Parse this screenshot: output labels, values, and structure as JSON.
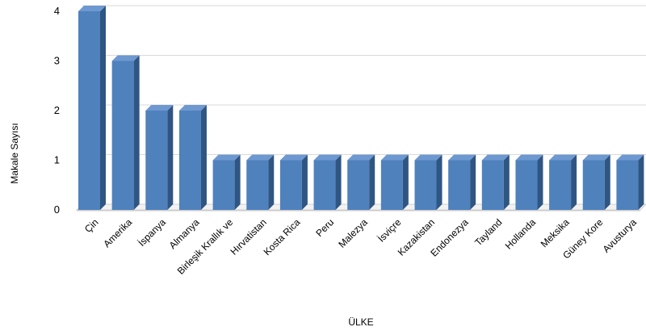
{
  "chart_data": {
    "type": "bar",
    "title": "",
    "xlabel": "ÜLKE",
    "ylabel": "Makale Sayısı",
    "ylim": [
      0,
      4
    ],
    "yticks": [
      0,
      1,
      2,
      3,
      4
    ],
    "grid": true,
    "style": "3d",
    "bar_color": "#4F81BD",
    "categories": [
      "Çin",
      "Amerika",
      "İspanya",
      "Almanya",
      "Birleşik Krallık ve",
      "Hırvatistan",
      "Kosta Rica",
      "Peru",
      "Malezya",
      "İsviçre",
      "Kazakistan",
      "Endonezya",
      "Tayland",
      "Hollanda",
      "Meksika",
      "Güney Kore",
      "Avusturya"
    ],
    "values": [
      4,
      3,
      2,
      2,
      1,
      1,
      1,
      1,
      1,
      1,
      1,
      1,
      1,
      1,
      1,
      1,
      1
    ]
  }
}
